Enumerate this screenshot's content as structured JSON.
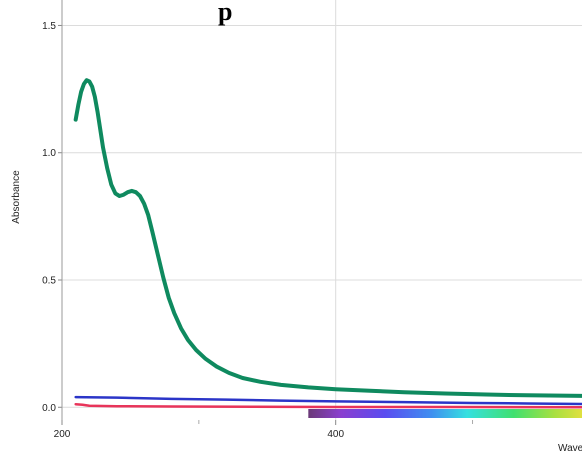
{
  "chart_data": {
    "type": "line",
    "title": "p",
    "xlabel": "Wave",
    "ylabel": "Absorbance",
    "xlim": [
      200,
      580
    ],
    "ylim": [
      -0.05,
      1.6
    ],
    "x_ticks": [
      {
        "value": 200,
        "label": "200"
      },
      {
        "value": 400,
        "label": "400"
      }
    ],
    "y_ticks": [
      {
        "value": 0.0,
        "label": "0.0"
      },
      {
        "value": 0.5,
        "label": "0.5"
      },
      {
        "value": 1.0,
        "label": "1.0"
      },
      {
        "value": 1.5,
        "label": "1.5"
      }
    ],
    "x_minor_ticks": [
      300,
      500
    ],
    "grid": true,
    "spectrum_bar": {
      "from": 380,
      "to": 580
    },
    "series": [
      {
        "color": "#0f8a5f",
        "points": [
          [
            210,
            1.13
          ],
          [
            212,
            1.19
          ],
          [
            214,
            1.24
          ],
          [
            216,
            1.27
          ],
          [
            218,
            1.285
          ],
          [
            220,
            1.28
          ],
          [
            222,
            1.26
          ],
          [
            224,
            1.22
          ],
          [
            226,
            1.16
          ],
          [
            228,
            1.09
          ],
          [
            230,
            1.02
          ],
          [
            233,
            0.94
          ],
          [
            236,
            0.875
          ],
          [
            239,
            0.84
          ],
          [
            242,
            0.83
          ],
          [
            245,
            0.835
          ],
          [
            248,
            0.845
          ],
          [
            251,
            0.85
          ],
          [
            254,
            0.845
          ],
          [
            257,
            0.83
          ],
          [
            260,
            0.8
          ],
          [
            263,
            0.755
          ],
          [
            266,
            0.69
          ],
          [
            270,
            0.6
          ],
          [
            274,
            0.51
          ],
          [
            278,
            0.43
          ],
          [
            282,
            0.37
          ],
          [
            287,
            0.31
          ],
          [
            292,
            0.265
          ],
          [
            298,
            0.225
          ],
          [
            305,
            0.19
          ],
          [
            313,
            0.16
          ],
          [
            322,
            0.135
          ],
          [
            332,
            0.115
          ],
          [
            345,
            0.1
          ],
          [
            360,
            0.088
          ],
          [
            380,
            0.078
          ],
          [
            400,
            0.071
          ],
          [
            425,
            0.065
          ],
          [
            450,
            0.059
          ],
          [
            480,
            0.054
          ],
          [
            510,
            0.05
          ],
          [
            540,
            0.047
          ],
          [
            580,
            0.045
          ]
        ]
      },
      {
        "color": "#2b35c8",
        "points": [
          [
            210,
            0.04
          ],
          [
            240,
            0.038
          ],
          [
            280,
            0.033
          ],
          [
            320,
            0.03
          ],
          [
            360,
            0.026
          ],
          [
            400,
            0.023
          ],
          [
            450,
            0.02
          ],
          [
            500,
            0.017
          ],
          [
            540,
            0.015
          ],
          [
            580,
            0.013
          ]
        ]
      },
      {
        "color": "#e8345a",
        "points": [
          [
            210,
            0.012
          ],
          [
            215,
            0.01
          ],
          [
            220,
            0.006
          ],
          [
            240,
            0.004
          ],
          [
            280,
            0.003
          ],
          [
            340,
            0.002
          ],
          [
            400,
            0.001
          ],
          [
            480,
            0.001
          ],
          [
            580,
            0.0
          ]
        ]
      }
    ]
  }
}
